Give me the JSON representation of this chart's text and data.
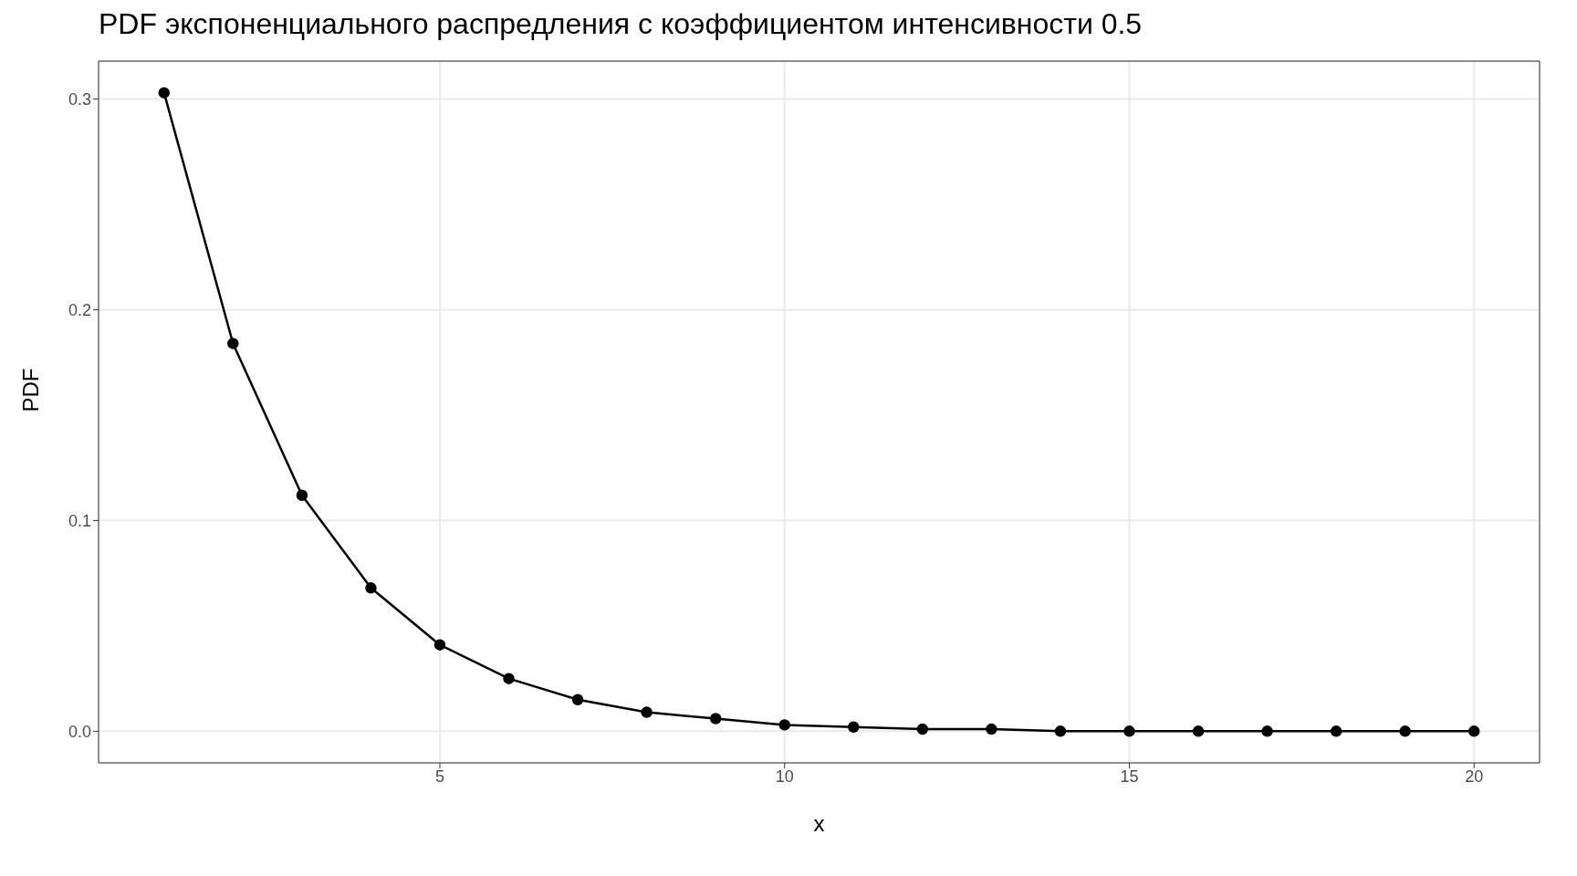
{
  "chart_data": {
    "type": "line",
    "title": "PDF экспоненциального распредления с коэффициентом интенсивности 0.5",
    "xlabel": "x",
    "ylabel": "PDF",
    "x": [
      1,
      2,
      3,
      4,
      5,
      6,
      7,
      8,
      9,
      10,
      11,
      12,
      13,
      14,
      15,
      16,
      17,
      18,
      19,
      20
    ],
    "series": [
      {
        "color": "#000000",
        "values": [
          0.303,
          0.184,
          0.112,
          0.068,
          0.041,
          0.025,
          0.015,
          0.009,
          0.006,
          0.003,
          0.002,
          0.001,
          0.001,
          0,
          0,
          0,
          0,
          0,
          0,
          0
        ]
      }
    ],
    "xlim": [
      0.05,
      20.95
    ],
    "xticks": [
      5,
      10,
      15,
      20
    ],
    "ylim": [
      -0.015,
      0.318
    ],
    "yticks": [
      {
        "value": 0,
        "label": "0.0"
      },
      0.1,
      0.2,
      0.3
    ],
    "grid": true,
    "marker": "circle",
    "line_style": "solid"
  }
}
